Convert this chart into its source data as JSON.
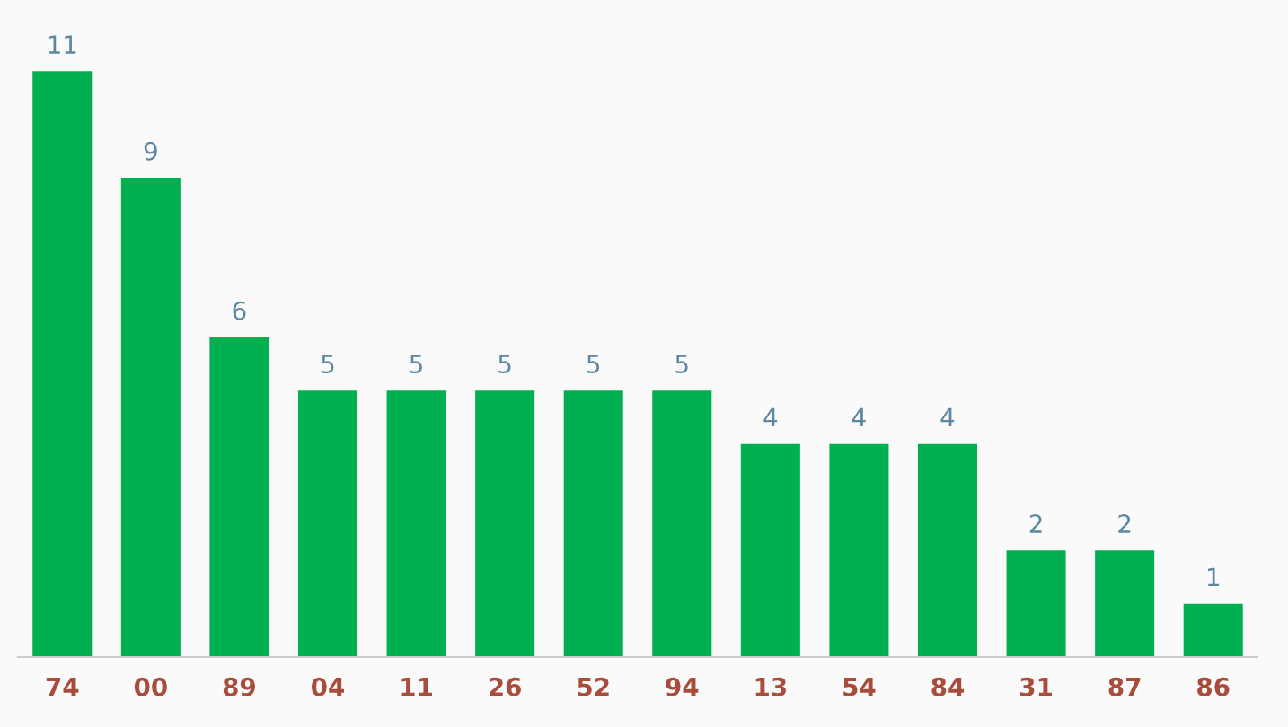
{
  "chart_data": {
    "type": "bar",
    "categories": [
      "74",
      "00",
      "89",
      "04",
      "11",
      "26",
      "52",
      "94",
      "13",
      "54",
      "84",
      "31",
      "87",
      "86"
    ],
    "values": [
      11,
      9,
      6,
      5,
      5,
      5,
      5,
      5,
      4,
      4,
      4,
      2,
      2,
      1
    ],
    "color": "#00b050",
    "data_labels": true,
    "grid": false,
    "legend": false
  }
}
